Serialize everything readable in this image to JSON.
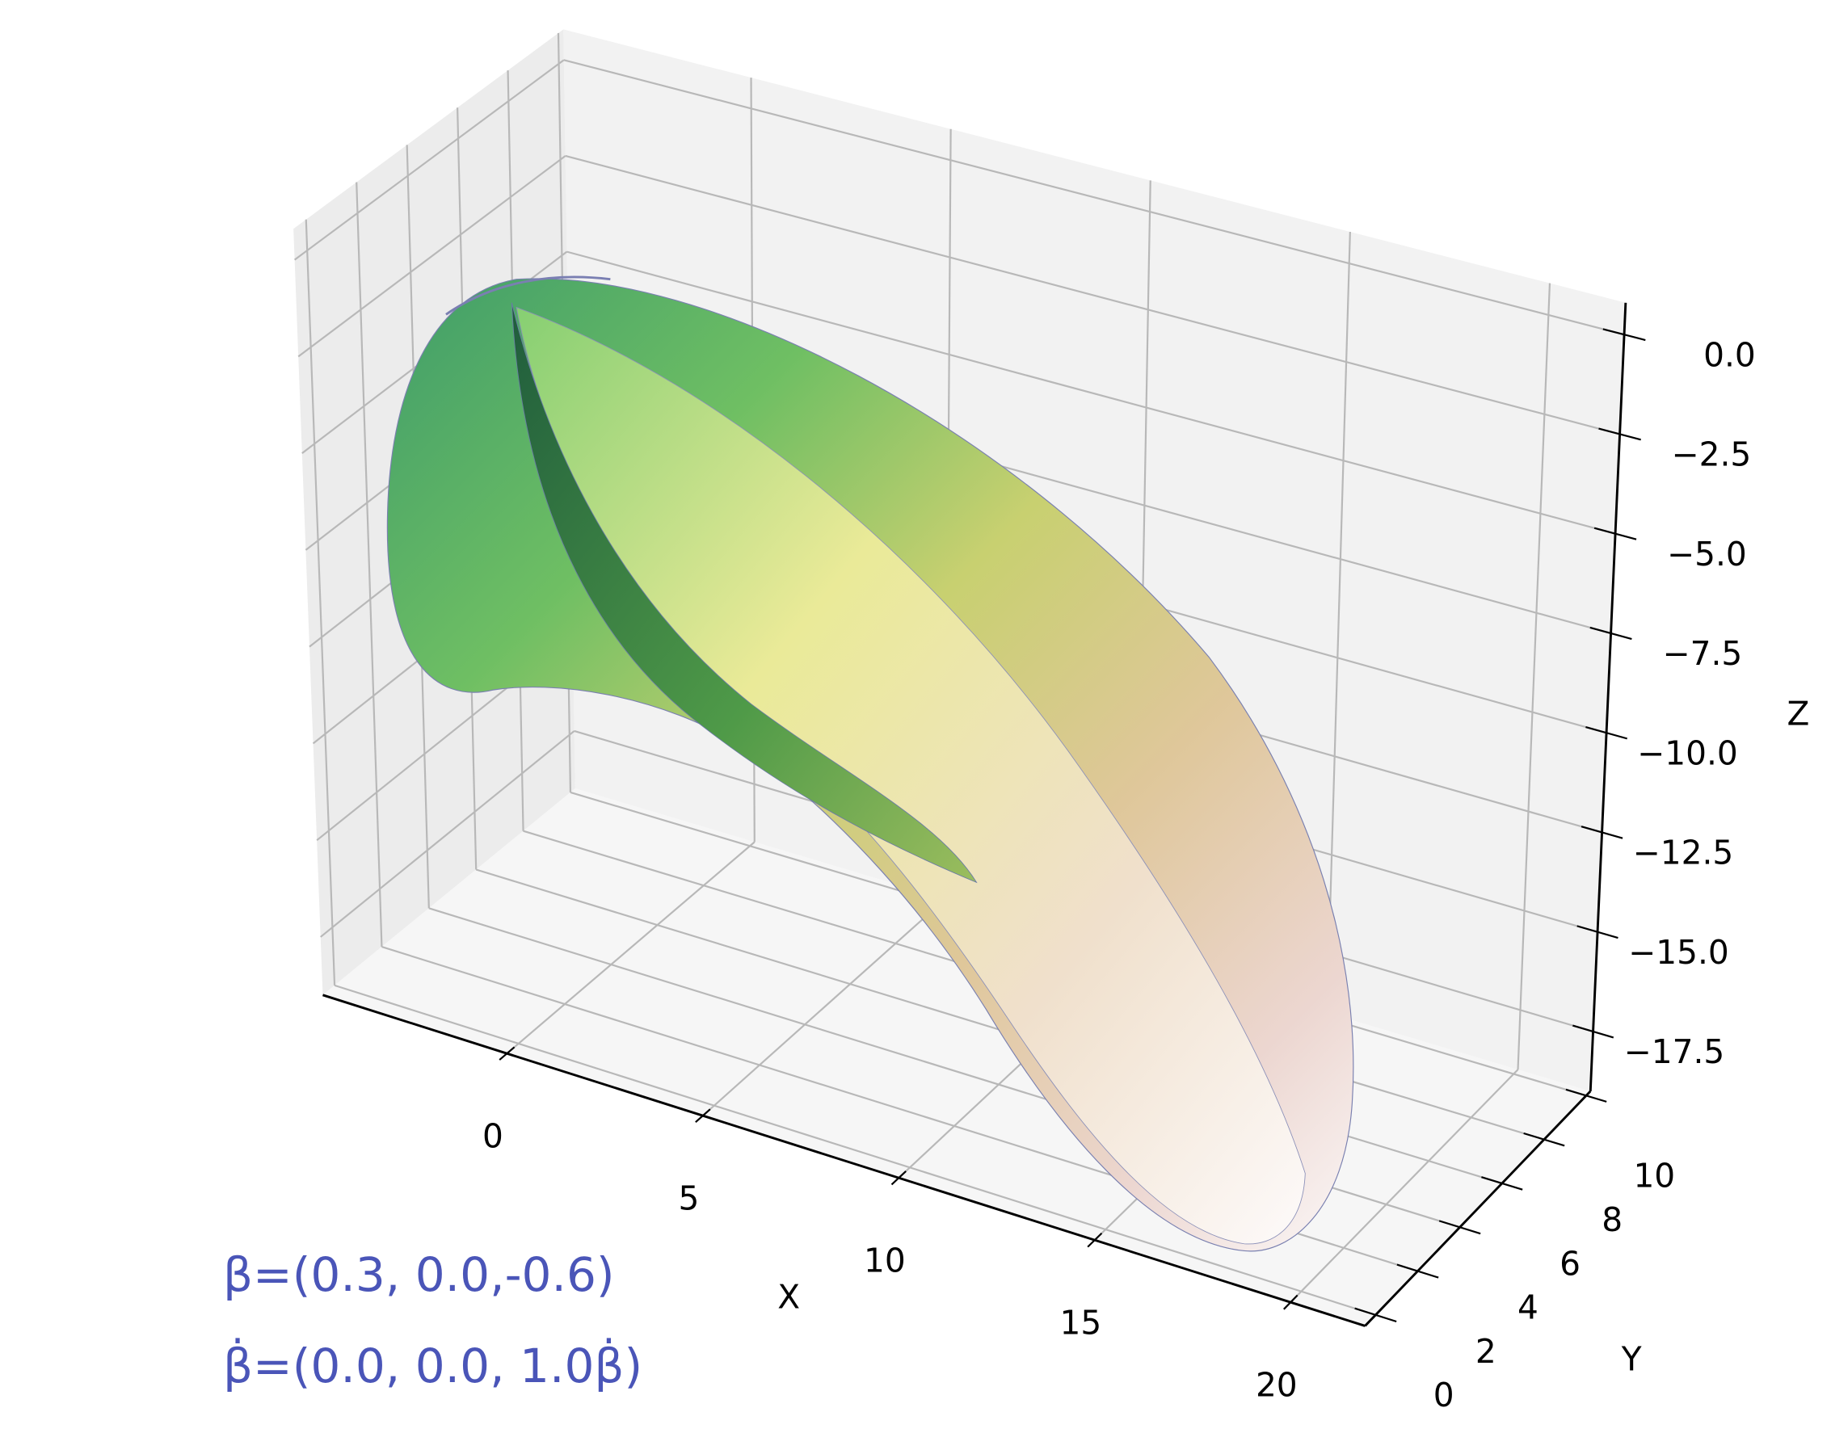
{
  "chart_data": {
    "type": "surface3d",
    "xlabel": "X",
    "ylabel": "Y",
    "zlabel": "Z",
    "xlim": [
      -4.7,
      21.9
    ],
    "xticks": [
      0,
      5,
      10,
      15,
      20
    ],
    "ylim": [
      -0.5,
      10.2
    ],
    "yticks": [
      0,
      2,
      4,
      6,
      8,
      10
    ],
    "zlim": [
      -19.0,
      0.8
    ],
    "zticks": [
      {
        "value": -17.5,
        "label": "−17.5"
      },
      {
        "value": -15.0,
        "label": "−15.0"
      },
      {
        "value": -12.5,
        "label": "−12.5"
      },
      {
        "value": -10.0,
        "label": "−10.0"
      },
      {
        "value": -7.5,
        "label": "−7.5"
      },
      {
        "value": -5.0,
        "label": "−5.0"
      },
      {
        "value": -2.5,
        "label": "−2.5"
      },
      {
        "value": 0,
        "label": "0.0"
      }
    ],
    "grid": true,
    "annotations": [
      "β=(0.3, 0.0,-0.6)",
      "β̇=(0.0, 0.0, 1.0β̇)"
    ]
  }
}
